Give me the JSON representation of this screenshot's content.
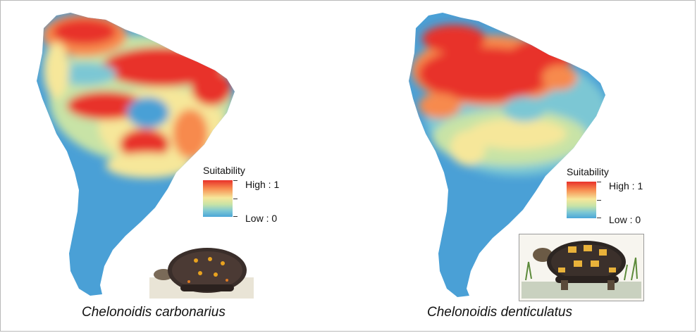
{
  "panels": [
    {
      "species": "Chelonoidis carbonarius",
      "legend": {
        "title": "Suitability",
        "high": "High : 1",
        "low": "Low : 0"
      }
    },
    {
      "species": "Chelonoidis denticulatus",
      "legend": {
        "title": "Suitability",
        "high": "High : 1",
        "low": "Low : 0"
      }
    }
  ],
  "colors": {
    "high": "#e8312a",
    "mid_high": "#f78a4e",
    "mid": "#f6e79a",
    "mid_low": "#c8e3a6",
    "low": "#4aa6d8",
    "land_base": "#4aa0d6"
  },
  "icons": [
    "tortoise-carbonarius-illustration",
    "tortoise-denticulatus-illustration"
  ]
}
